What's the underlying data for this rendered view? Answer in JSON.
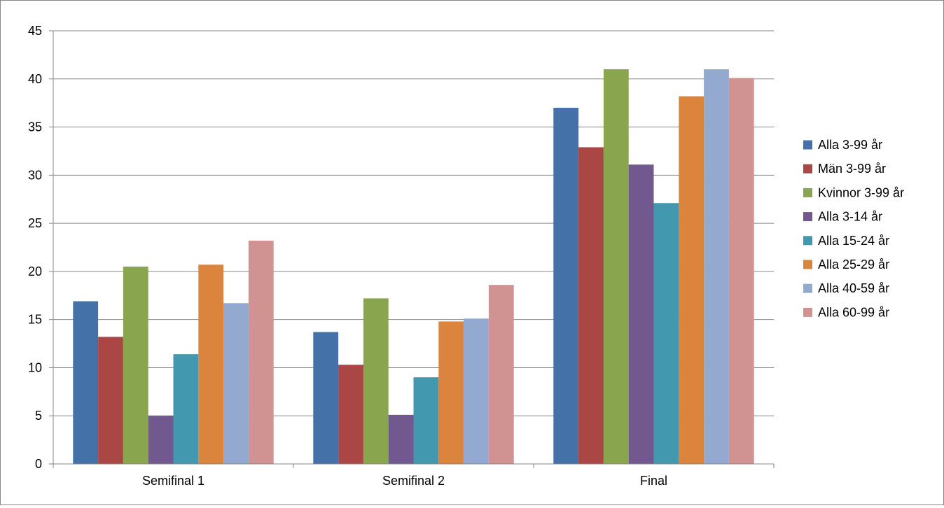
{
  "chart_data": {
    "type": "bar",
    "title": "",
    "xlabel": "",
    "ylabel": "",
    "categories": [
      "Semifinal 1",
      "Semifinal 2",
      "Final"
    ],
    "ylim": [
      0,
      45
    ],
    "yticks": [
      0,
      5,
      10,
      15,
      20,
      25,
      30,
      35,
      40,
      45
    ],
    "grid": true,
    "legend_position": "right",
    "series": [
      {
        "name": "Alla 3-99 år",
        "color": "#4472A8",
        "values": [
          16.9,
          13.7,
          37.0
        ]
      },
      {
        "name": "Män 3-99 år",
        "color": "#AA4643",
        "values": [
          13.2,
          10.3,
          32.9
        ]
      },
      {
        "name": "Kvinnor 3-99 år",
        "color": "#89A54E",
        "values": [
          20.5,
          17.2,
          41.0
        ]
      },
      {
        "name": "Alla 3-14 år",
        "color": "#71588F",
        "values": [
          5.0,
          5.1,
          31.1
        ]
      },
      {
        "name": "Alla 15-24 år",
        "color": "#4198AF",
        "values": [
          11.4,
          9.0,
          27.1
        ]
      },
      {
        "name": "Alla 25-29 år",
        "color": "#DB843D",
        "values": [
          20.7,
          14.8,
          38.2
        ]
      },
      {
        "name": "Alla 40-59 år",
        "color": "#93A9CF",
        "values": [
          16.7,
          15.1,
          41.0
        ]
      },
      {
        "name": "Alla 60-99 år",
        "color": "#D19392",
        "values": [
          23.2,
          18.6,
          40.1
        ]
      }
    ]
  }
}
